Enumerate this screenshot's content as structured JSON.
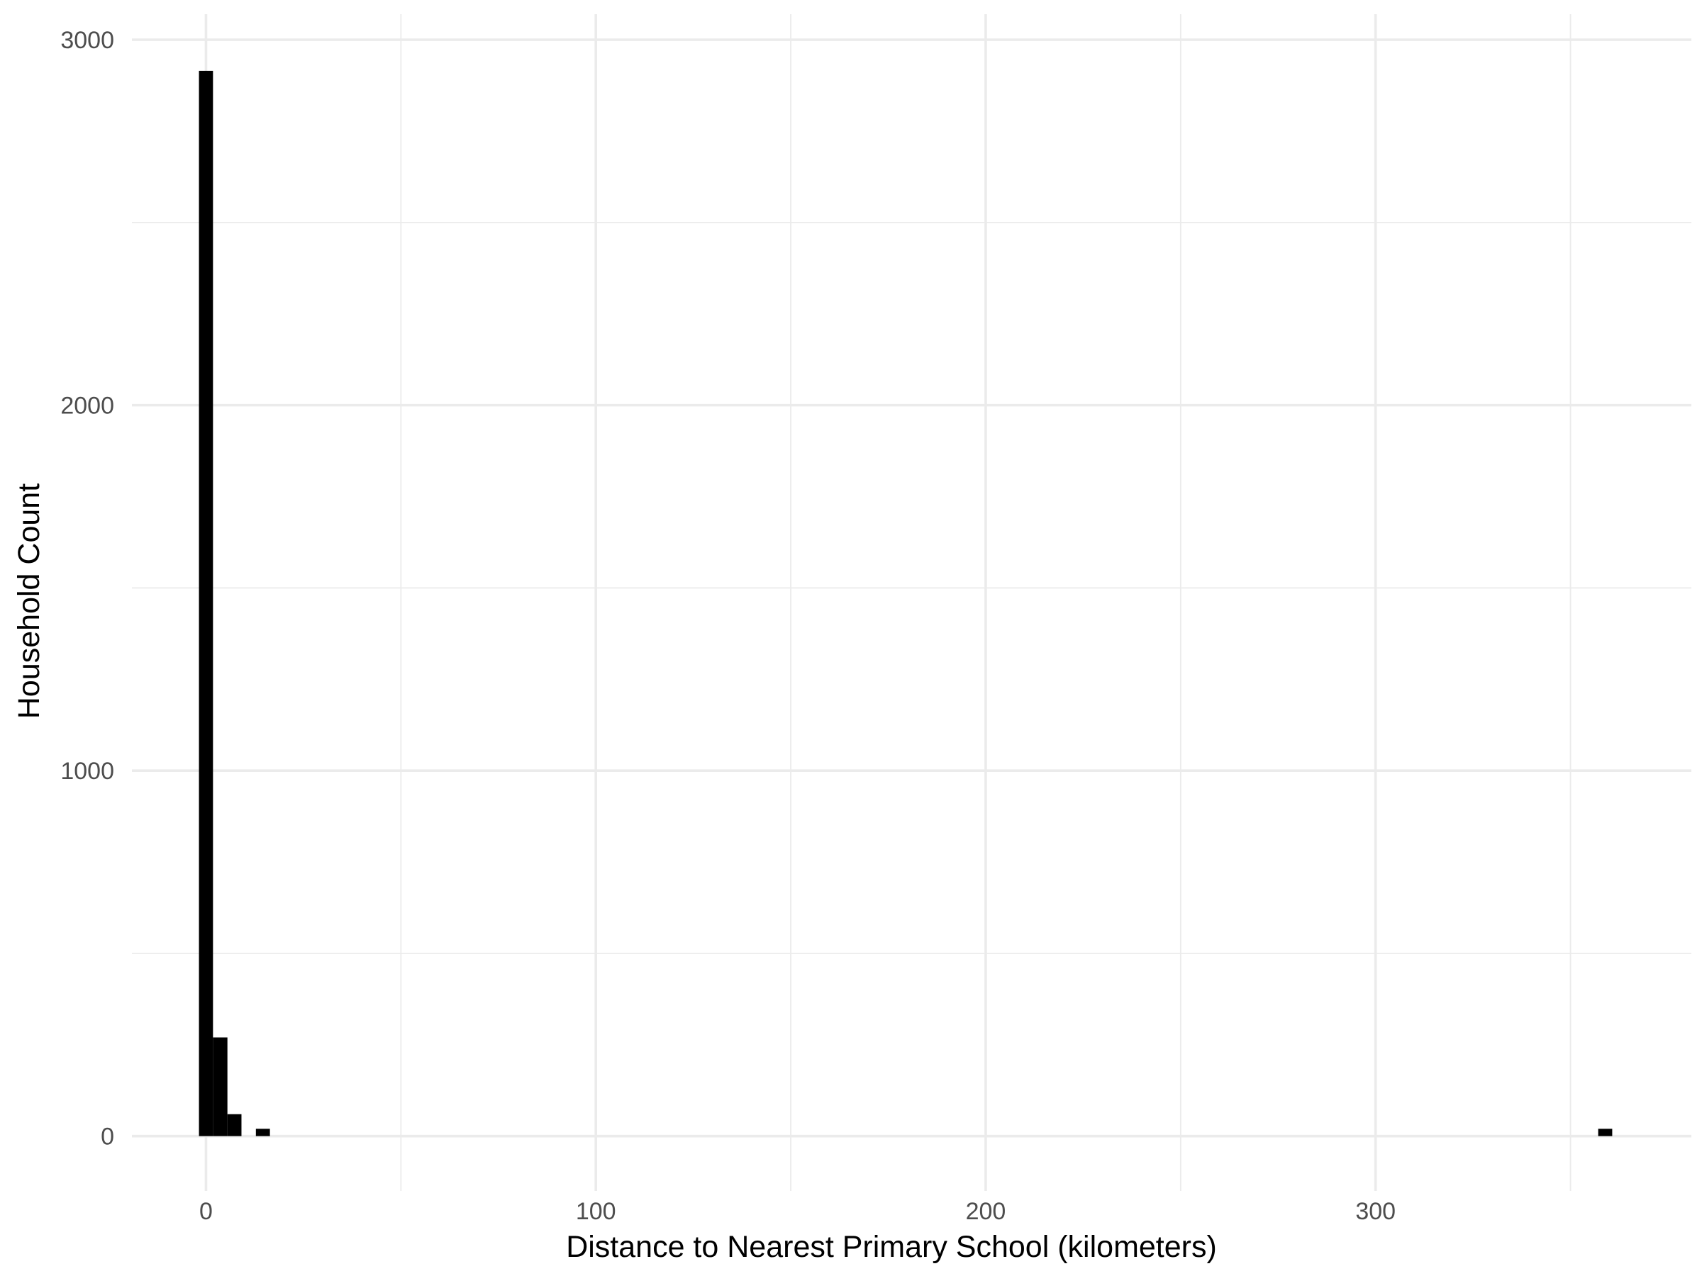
{
  "chart_data": {
    "type": "bar",
    "subtype": "histogram",
    "title": "",
    "xlabel": "Distance to Nearest Primary School (kilometers)",
    "ylabel": "Household Count",
    "xlim": [
      -19,
      381
    ],
    "ylim": [
      -150,
      3070
    ],
    "x_ticks": [
      0,
      100,
      200,
      300
    ],
    "x_tick_labels": [
      "0",
      "100",
      "200",
      "300"
    ],
    "y_ticks": [
      0,
      1000,
      2000,
      3000
    ],
    "y_tick_labels": [
      "0",
      "1000",
      "2000",
      "3000"
    ],
    "x_minor_ticks": [
      50,
      150,
      250,
      350
    ],
    "y_minor_ticks": [
      500,
      1500,
      2500
    ],
    "grid": true,
    "bar_color": "#000000",
    "bins": [
      {
        "x0": -1.8,
        "x1": 1.8,
        "count": 2915
      },
      {
        "x0": 1.8,
        "x1": 5.5,
        "count": 270
      },
      {
        "x0": 5.5,
        "x1": 9.1,
        "count": 60
      },
      {
        "x0": 12.8,
        "x1": 16.4,
        "count": 20
      },
      {
        "x0": 357.1,
        "x1": 360.7,
        "count": 20
      }
    ]
  }
}
